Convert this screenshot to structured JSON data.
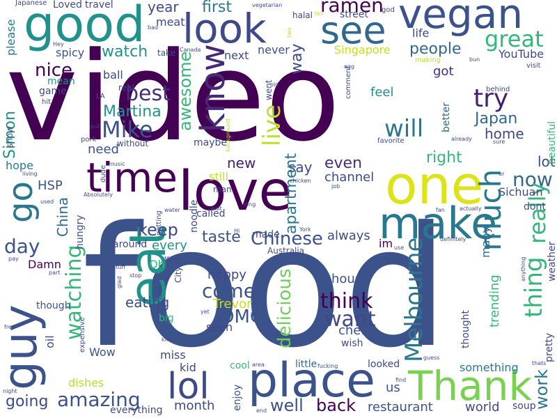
{
  "words": [
    {
      "text": "video",
      "color": "#440154"
    },
    {
      "text": "food",
      "color": "#3b528b"
    },
    {
      "text": "vegan",
      "color": "#3b528b"
    },
    {
      "text": "good",
      "color": "#21918c"
    },
    {
      "text": "look",
      "color": "#3e4989"
    },
    {
      "text": "see",
      "color": "#31688e"
    },
    {
      "text": "one",
      "color": "#dde318"
    },
    {
      "text": "love",
      "color": "#440154"
    },
    {
      "text": "time",
      "color": "#440154"
    },
    {
      "text": "eat",
      "color": "#21918c"
    },
    {
      "text": "guy",
      "color": "#3b528b"
    },
    {
      "text": "go",
      "color": "#2a788e"
    },
    {
      "text": "make",
      "color": "#2a788e"
    },
    {
      "text": "place",
      "color": "#3b528b"
    },
    {
      "text": "Thank",
      "color": "#7ad151"
    },
    {
      "text": "lol",
      "color": "#3e4989"
    },
    {
      "text": "know",
      "color": "#482878"
    },
    {
      "text": "ramen",
      "color": "#440154"
    },
    {
      "text": "way",
      "color": "#3e4989"
    },
    {
      "text": "great",
      "color": "#35b779"
    },
    {
      "text": "people",
      "color": "#31688e"
    },
    {
      "text": "life",
      "color": "#3e4989"
    },
    {
      "text": "YouTube",
      "color": "#3e4989"
    },
    {
      "text": "Singapore",
      "color": "#c2df23"
    },
    {
      "text": "try",
      "color": "#481f70"
    },
    {
      "text": "Mike",
      "color": "#3b528b"
    },
    {
      "text": "best",
      "color": "#472d7b"
    },
    {
      "text": "Martina",
      "color": "#21918c"
    },
    {
      "text": "nice",
      "color": "#440154"
    },
    {
      "text": "will",
      "color": "#2a788e"
    },
    {
      "text": "Japan",
      "color": "#31688e"
    },
    {
      "text": "home",
      "color": "#3e4989"
    },
    {
      "text": "live",
      "color": "#bddf26"
    },
    {
      "text": "awesome",
      "color": "#35b779"
    },
    {
      "text": "watch",
      "color": "#21918c"
    },
    {
      "text": "spicy",
      "color": "#3b528b"
    },
    {
      "text": "meat",
      "color": "#3e4989"
    },
    {
      "text": "year",
      "color": "#3e4989"
    },
    {
      "text": "first",
      "color": "#2a788e"
    },
    {
      "text": "next",
      "color": "#3e4989"
    },
    {
      "text": "never",
      "color": "#3b528b"
    },
    {
      "text": "got",
      "color": "#472d7b"
    },
    {
      "text": "feel",
      "color": "#21918c"
    },
    {
      "text": "now",
      "color": "#31688e"
    },
    {
      "text": "Simon",
      "color": "#21918c"
    },
    {
      "text": "need",
      "color": "#3b528b"
    },
    {
      "text": "hope",
      "color": "#2a788e"
    },
    {
      "text": "new",
      "color": "#481f70"
    },
    {
      "text": "say",
      "color": "#3e4989"
    },
    {
      "text": "even",
      "color": "#472d7b"
    },
    {
      "text": "apartment",
      "color": "#2a788e"
    },
    {
      "text": "channel",
      "color": "#3e4989"
    },
    {
      "text": "right",
      "color": "#35b779"
    },
    {
      "text": "lot",
      "color": "#3e4989"
    },
    {
      "text": "really",
      "color": "#35b779"
    },
    {
      "text": "Sichuan",
      "color": "#3e4989"
    },
    {
      "text": "HSP",
      "color": "#3b528b"
    },
    {
      "text": "day",
      "color": "#3b528b"
    },
    {
      "text": "China",
      "color": "#31688e"
    },
    {
      "text": "keep",
      "color": "#3e4989"
    },
    {
      "text": "taste",
      "color": "#3b528b"
    },
    {
      "text": "Chinese",
      "color": "#3b528b"
    },
    {
      "text": "always",
      "color": "#3e4989"
    },
    {
      "text": "much",
      "color": "#2a788e"
    },
    {
      "text": "Melbourne",
      "color": "#2a788e"
    },
    {
      "text": "thing",
      "color": "#35b779"
    },
    {
      "text": "every",
      "color": "#21918c"
    },
    {
      "text": "watching",
      "color": "#35b779"
    },
    {
      "text": "come",
      "color": "#3b528b"
    },
    {
      "text": "Trevor",
      "color": "#c2df23"
    },
    {
      "text": "happy",
      "color": "#3e4989"
    },
    {
      "text": "house",
      "color": "#3b528b"
    },
    {
      "text": "think",
      "color": "#440154"
    },
    {
      "text": "delicious",
      "color": "#6ece58"
    },
    {
      "text": "want",
      "color": "#3e4989"
    },
    {
      "text": "OMG",
      "color": "#3b528b"
    },
    {
      "text": "chef",
      "color": "#3b528b"
    },
    {
      "text": "seen",
      "color": "#3e4989"
    },
    {
      "text": "eating",
      "color": "#3e4989"
    },
    {
      "text": "amazing",
      "color": "#3b528b"
    },
    {
      "text": "going",
      "color": "#3e4989"
    },
    {
      "text": "month",
      "color": "#3e4989"
    },
    {
      "text": "back",
      "color": "#440154"
    },
    {
      "text": "well",
      "color": "#3b528b"
    },
    {
      "text": "restaurant",
      "color": "#3b528b"
    },
    {
      "text": "world",
      "color": "#3e4989"
    },
    {
      "text": "us",
      "color": "#3b528b"
    },
    {
      "text": "work",
      "color": "#2a788e"
    },
    {
      "text": "Damn",
      "color": "#440154"
    },
    {
      "text": "Wow",
      "color": "#3b528b"
    },
    {
      "text": "dishes",
      "color": "#b5de2b"
    },
    {
      "text": "miss",
      "color": "#3e4989"
    },
    {
      "text": "kid",
      "color": "#3e4989"
    },
    {
      "text": "cool",
      "color": "#35b779"
    },
    {
      "text": "enjoy",
      "color": "#3b528b"
    },
    {
      "text": "everything",
      "color": "#3e4989"
    },
    {
      "text": "looked",
      "color": "#3e4989"
    },
    {
      "text": "little",
      "color": "#31688e"
    },
    {
      "text": "something",
      "color": "#2a788e"
    },
    {
      "text": "trending",
      "color": "#35b779"
    },
    {
      "text": "better",
      "color": "#31688e"
    },
    {
      "text": "made",
      "color": "#3e4989"
    },
    {
      "text": "still",
      "color": "#c2df23"
    },
    {
      "text": "noodle",
      "color": "#3e4989"
    },
    {
      "text": "called",
      "color": "#3e4989"
    },
    {
      "text": "im",
      "color": "#440154"
    },
    {
      "text": "many",
      "color": "#31688e"
    },
    {
      "text": "weather",
      "color": "#3e4989"
    },
    {
      "text": "beautiful",
      "color": "#35b779"
    },
    {
      "text": "hungry",
      "color": "#3b528b"
    },
    {
      "text": "oil",
      "color": "#3e4989"
    },
    {
      "text": "though",
      "color": "#3b528b"
    },
    {
      "text": "ball",
      "color": "#3e4989"
    },
    {
      "text": "game",
      "color": "#3e4989"
    },
    {
      "text": "mean",
      "color": "#21918c"
    },
    {
      "text": "show",
      "color": "#3e4989"
    },
    {
      "text": "Oh",
      "color": "#35b779"
    },
    {
      "text": "around",
      "color": "#3e4989"
    },
    {
      "text": "big",
      "color": "#35b779"
    },
    {
      "text": "maybe",
      "color": "#3e4989"
    },
    {
      "text": "thought",
      "color": "#3e4989"
    },
    {
      "text": "pretty",
      "color": "#3e4989"
    },
    {
      "text": "soup",
      "color": "#3e4989"
    },
    {
      "text": "wish",
      "color": "#3e4989"
    },
    {
      "text": "man",
      "color": "#3e4989"
    },
    {
      "text": "dont",
      "color": "#3e4989"
    },
    {
      "text": "Loved",
      "color": "#3e4989"
    },
    {
      "text": "travel",
      "color": "#3e4989"
    },
    {
      "text": "Japanese",
      "color": "#3e4989"
    },
    {
      "text": "please",
      "color": "#2a788e"
    },
    {
      "text": "vegetarian",
      "color": "#3e4989"
    },
    {
      "text": "halal",
      "color": "#3e4989"
    },
    {
      "text": "street",
      "color": "#3e4989"
    },
    {
      "text": "god",
      "color": "#3e4989"
    },
    {
      "text": "tell",
      "color": "#c2df23"
    },
    {
      "text": "two",
      "color": "#c2df23"
    },
    {
      "text": "take",
      "color": "#3e4989"
    },
    {
      "text": "Canada",
      "color": "#3e4989"
    },
    {
      "text": "bad",
      "color": "#3e4989"
    },
    {
      "text": "making",
      "color": "#c2df23"
    },
    {
      "text": "bun",
      "color": "#3e4989"
    },
    {
      "text": "visit",
      "color": "#3e4989"
    },
    {
      "text": "egg",
      "color": "#3e4989"
    },
    {
      "text": "comment",
      "color": "#3e4989"
    },
    {
      "text": "old",
      "color": "#3e4989"
    },
    {
      "text": "went",
      "color": "#3e4989"
    },
    {
      "text": "behind",
      "color": "#3e4989"
    },
    {
      "text": "real",
      "color": "#3e4989"
    },
    {
      "text": "LA",
      "color": "#3e4989"
    },
    {
      "text": "hit",
      "color": "#3e4989"
    },
    {
      "text": "pork",
      "color": "#3e4989"
    },
    {
      "text": "put",
      "color": "#3e4989"
    },
    {
      "text": "without",
      "color": "#3e4989"
    },
    {
      "text": "background",
      "color": "#c2df23"
    },
    {
      "text": "favorite",
      "color": "#3e4989"
    },
    {
      "text": "already",
      "color": "#3e4989"
    },
    {
      "text": "sure",
      "color": "#3e4989"
    },
    {
      "text": "living",
      "color": "#3e4989"
    },
    {
      "text": "music",
      "color": "#3e4989"
    },
    {
      "text": "dude",
      "color": "#3e4989"
    },
    {
      "text": "getting",
      "color": "#3e4989"
    },
    {
      "text": "chicken",
      "color": "#3e4989"
    },
    {
      "text": "job",
      "color": "#3e4989"
    },
    {
      "text": "ur",
      "color": "#3e4989"
    },
    {
      "text": "used",
      "color": "#3e4989"
    },
    {
      "text": "Absolutely",
      "color": "#3e4989"
    },
    {
      "text": "water",
      "color": "#3e4989"
    },
    {
      "text": "wait",
      "color": "#3e4989"
    },
    {
      "text": "long",
      "color": "#3e4989"
    },
    {
      "text": "Hi",
      "color": "#3e4989"
    },
    {
      "text": "York",
      "color": "#3e4989"
    },
    {
      "text": "fan",
      "color": "#3e4989"
    },
    {
      "text": "actually",
      "color": "#3e4989"
    },
    {
      "text": "definitely",
      "color": "#3e4989"
    },
    {
      "text": "use",
      "color": "#3e4989"
    },
    {
      "text": "hand",
      "color": "#3e4989"
    },
    {
      "text": "anything",
      "color": "#3e4989"
    },
    {
      "text": "pay",
      "color": "#3e4989"
    },
    {
      "text": "part",
      "color": "#3e4989"
    },
    {
      "text": "stuff",
      "color": "#3e4989"
    },
    {
      "text": "stop",
      "color": "#3e4989"
    },
    {
      "text": "Mikey",
      "color": "#3e4989"
    },
    {
      "text": "City",
      "color": "#3e4989"
    },
    {
      "text": "https",
      "color": "#3e4989"
    },
    {
      "text": "glad",
      "color": "#3e4989"
    },
    {
      "text": "yet",
      "color": "#3e4989"
    },
    {
      "text": "free",
      "color": "#3e4989"
    },
    {
      "text": "expensive",
      "color": "#3e4989"
    },
    {
      "text": "kind",
      "color": "#3e4989"
    },
    {
      "text": "area",
      "color": "#3e4989"
    },
    {
      "text": "fucking",
      "color": "#3e4989"
    },
    {
      "text": "find",
      "color": "#3e4989"
    },
    {
      "text": "guess",
      "color": "#3e4989"
    },
    {
      "text": "thats",
      "color": "#3e4989"
    },
    {
      "text": "night",
      "color": "#3e4989"
    },
    {
      "text": "end",
      "color": "#3e4989"
    },
    {
      "text": "Hey",
      "color": "#3e4989"
    },
    {
      "text": "Australia",
      "color": "#3e4989"
    }
  ]
}
